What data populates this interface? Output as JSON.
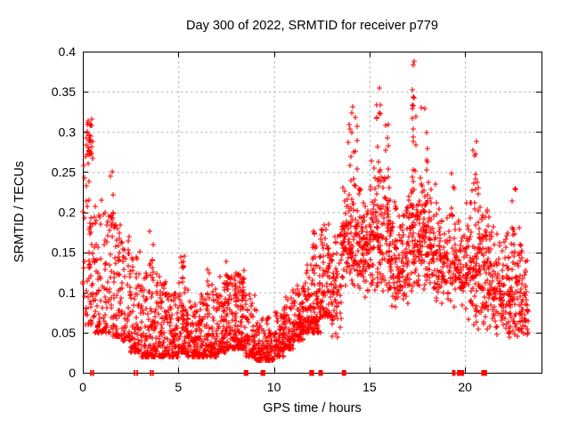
{
  "chart_data": {
    "type": "scatter",
    "title": "Day 300 of 2022, SRMTID for receiver p779",
    "xlabel": "GPS time / hours",
    "ylabel": "SRMTID / TECUs",
    "xlim": [
      0,
      24
    ],
    "ylim": [
      0,
      0.4
    ],
    "xticks": [
      0,
      5,
      10,
      15,
      20
    ],
    "xtick_labels": [
      "0",
      "5",
      "10",
      "15",
      "20"
    ],
    "yticks": [
      0,
      0.05,
      0.1,
      0.15,
      0.2,
      0.25,
      0.3,
      0.35,
      0.4
    ],
    "ytick_labels": [
      "0",
      "0.05",
      "0.1",
      "0.15",
      "0.2",
      "0.25",
      "0.3",
      "0.35",
      "0.4"
    ],
    "grid": true,
    "legend": null,
    "marker_style": "plus",
    "colors": {
      "marker": "#ff0000",
      "grid": "#b3b3b3",
      "border": "#000000",
      "background": "#ffffff",
      "text": "#000000"
    },
    "max_point": [
      17.34,
      0.388
    ],
    "envelope_bins": [
      [
        0.0,
        0.5,
        0.06,
        0.27,
        40,
        0
      ],
      [
        0.15,
        0.5,
        0.27,
        0.322,
        26,
        2
      ],
      [
        0.5,
        1.0,
        0.05,
        0.22,
        55,
        0
      ],
      [
        1.0,
        1.5,
        0.05,
        0.21,
        55,
        0
      ],
      [
        1.5,
        2.0,
        0.045,
        0.2,
        60,
        0
      ],
      [
        2.0,
        2.5,
        0.04,
        0.17,
        60,
        0
      ],
      [
        2.5,
        3.0,
        0.025,
        0.16,
        65,
        0
      ],
      [
        3.0,
        3.5,
        0.02,
        0.125,
        65,
        0
      ],
      [
        3.5,
        4.0,
        0.02,
        0.13,
        70,
        0
      ],
      [
        4.0,
        4.5,
        0.02,
        0.115,
        75,
        0
      ],
      [
        4.5,
        5.0,
        0.02,
        0.1,
        75,
        0
      ],
      [
        5.0,
        5.5,
        0.025,
        0.12,
        75,
        0
      ],
      [
        5.5,
        6.0,
        0.02,
        0.09,
        70,
        0
      ],
      [
        6.0,
        6.5,
        0.02,
        0.1,
        70,
        0
      ],
      [
        6.5,
        7.0,
        0.02,
        0.115,
        70,
        0
      ],
      [
        7.0,
        7.5,
        0.025,
        0.125,
        75,
        0
      ],
      [
        7.5,
        8.0,
        0.03,
        0.12,
        80,
        0
      ],
      [
        8.0,
        8.5,
        0.03,
        0.125,
        85,
        0
      ],
      [
        8.5,
        9.0,
        0.02,
        0.105,
        70,
        0
      ],
      [
        9.0,
        9.5,
        0.015,
        0.08,
        60,
        0
      ],
      [
        9.5,
        10.0,
        0.015,
        0.07,
        60,
        0
      ],
      [
        10.0,
        10.5,
        0.02,
        0.08,
        70,
        0
      ],
      [
        10.5,
        11.0,
        0.03,
        0.1,
        75,
        0
      ],
      [
        11.0,
        11.5,
        0.04,
        0.115,
        75,
        0
      ],
      [
        11.5,
        12.0,
        0.05,
        0.14,
        75,
        0
      ],
      [
        12.0,
        12.5,
        0.05,
        0.16,
        75,
        0
      ],
      [
        12.5,
        13.0,
        0.07,
        0.19,
        65,
        0
      ],
      [
        13.0,
        13.5,
        0.04,
        0.21,
        60,
        1
      ],
      [
        13.5,
        14.0,
        0.1,
        0.24,
        65,
        1
      ],
      [
        14.0,
        14.5,
        0.1,
        0.26,
        70,
        1
      ],
      [
        14.5,
        15.0,
        0.09,
        0.24,
        65,
        1
      ],
      [
        15.0,
        15.5,
        0.1,
        0.27,
        70,
        1
      ],
      [
        15.5,
        16.0,
        0.1,
        0.26,
        65,
        1
      ],
      [
        16.0,
        16.5,
        0.08,
        0.235,
        70,
        1
      ],
      [
        16.5,
        17.0,
        0.08,
        0.22,
        65,
        1
      ],
      [
        17.0,
        17.5,
        0.1,
        0.27,
        70,
        1
      ],
      [
        17.5,
        18.0,
        0.1,
        0.26,
        70,
        1
      ],
      [
        18.0,
        18.5,
        0.1,
        0.245,
        60,
        1
      ],
      [
        18.5,
        19.0,
        0.08,
        0.21,
        55,
        1
      ],
      [
        19.0,
        19.5,
        0.08,
        0.22,
        50,
        1
      ],
      [
        19.5,
        20.0,
        0.07,
        0.22,
        55,
        1
      ],
      [
        20.0,
        20.5,
        0.06,
        0.24,
        60,
        1
      ],
      [
        20.5,
        21.0,
        0.05,
        0.25,
        70,
        1
      ],
      [
        21.0,
        21.5,
        0.05,
        0.22,
        65,
        1
      ],
      [
        21.5,
        22.0,
        0.04,
        0.19,
        65,
        1
      ],
      [
        22.0,
        22.5,
        0.04,
        0.2,
        65,
        1
      ],
      [
        22.5,
        23.0,
        0.04,
        0.19,
        60,
        1
      ],
      [
        23.0,
        23.3,
        0.04,
        0.16,
        35,
        1
      ]
    ],
    "spike_columns": [
      [
        0.28,
        0.45,
        0.07,
        0.3,
        14
      ],
      [
        1.45,
        1.62,
        0.17,
        0.253,
        10
      ],
      [
        3.5,
        3.7,
        0.12,
        0.183,
        8
      ],
      [
        5.12,
        5.35,
        0.1,
        0.148,
        10
      ],
      [
        6.5,
        6.65,
        0.09,
        0.13,
        6
      ],
      [
        7.3,
        7.55,
        0.1,
        0.14,
        8
      ],
      [
        8.2,
        8.45,
        0.09,
        0.135,
        8
      ],
      [
        12.0,
        12.2,
        0.11,
        0.177,
        8
      ],
      [
        12.35,
        12.6,
        0.11,
        0.18,
        8
      ],
      [
        13.9,
        14.35,
        0.24,
        0.332,
        14
      ],
      [
        15.35,
        15.6,
        0.2,
        0.372,
        14
      ],
      [
        15.8,
        16.0,
        0.24,
        0.31,
        7
      ],
      [
        17.2,
        17.45,
        0.21,
        0.388,
        16
      ],
      [
        17.7,
        18.1,
        0.21,
        0.34,
        12
      ],
      [
        19.2,
        19.45,
        0.19,
        0.25,
        6
      ],
      [
        20.35,
        20.7,
        0.2,
        0.3,
        12
      ],
      [
        21.05,
        21.35,
        0.17,
        0.24,
        6
      ],
      [
        22.35,
        22.7,
        0.17,
        0.23,
        7
      ]
    ],
    "zero_value_clusters": [
      [
        0.38,
        0.42
      ],
      [
        0.5,
        0.54
      ],
      [
        2.66,
        2.72
      ],
      [
        2.8,
        2.86
      ],
      [
        3.5,
        3.56
      ],
      [
        3.62,
        3.68
      ],
      [
        8.42,
        8.66
      ],
      [
        9.3,
        9.55
      ],
      [
        11.85,
        12.1
      ],
      [
        12.33,
        12.56
      ],
      [
        13.55,
        13.78
      ],
      [
        19.32,
        19.5
      ],
      [
        19.58,
        19.95
      ],
      [
        20.85,
        21.15
      ]
    ]
  }
}
